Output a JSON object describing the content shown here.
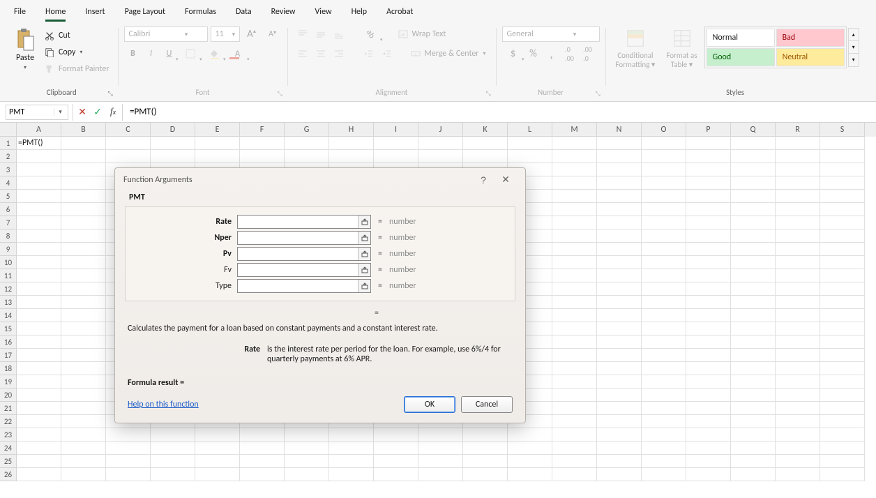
{
  "tabs": [
    "File",
    "Home",
    "Insert",
    "Page Layout",
    "Formulas",
    "Data",
    "Review",
    "View",
    "Help",
    "Acrobat"
  ],
  "active_tab": "Home",
  "clipboard": {
    "paste": "Paste",
    "cut": "Cut",
    "copy": "Copy",
    "format_painter": "Format Painter",
    "group_label": "Clipboard"
  },
  "font": {
    "name": "Calibri",
    "size": "11",
    "group_label": "Font"
  },
  "alignment": {
    "wrap": "Wrap Text",
    "merge": "Merge & Center",
    "group_label": "Alignment"
  },
  "number": {
    "format": "General",
    "group_label": "Number"
  },
  "cond_fmt": "Conditional Formatting",
  "fmt_table": "Format as Table",
  "styles": {
    "normal": "Normal",
    "bad": "Bad",
    "good": "Good",
    "neutral": "Neutral",
    "group_label": "Styles",
    "bad_bg": "#ffc7ce",
    "bad_fg": "#9c0006",
    "good_bg": "#c6efce",
    "good_fg": "#006100",
    "neutral_bg": "#ffeb9c",
    "neutral_fg": "#9c5700"
  },
  "namebox": "PMT",
  "formula": "=PMT()",
  "cell_a1": "=PMT()",
  "columns": [
    "A",
    "B",
    "C",
    "D",
    "E",
    "F",
    "G",
    "H",
    "I",
    "J",
    "K",
    "L",
    "M",
    "N",
    "O",
    "P",
    "Q",
    "R",
    "S"
  ],
  "row_count": 26,
  "dialog": {
    "title": "Function Arguments",
    "func": "PMT",
    "args": [
      {
        "label": "Rate",
        "bold": true,
        "hint": "number"
      },
      {
        "label": "Nper",
        "bold": true,
        "hint": "number"
      },
      {
        "label": "Pv",
        "bold": true,
        "hint": "number"
      },
      {
        "label": "Fv",
        "bold": false,
        "hint": "number"
      },
      {
        "label": "Type",
        "bold": false,
        "hint": "number"
      }
    ],
    "description": "Calculates the payment for a loan based on constant payments and a constant interest rate.",
    "arg_focus_label": "Rate",
    "arg_focus_desc": "is the interest rate per period for the loan. For example, use 6%/4 for quarterly payments at 6% APR.",
    "formula_result_label": "Formula result =",
    "help": "Help on this function",
    "ok": "OK",
    "cancel": "Cancel"
  }
}
